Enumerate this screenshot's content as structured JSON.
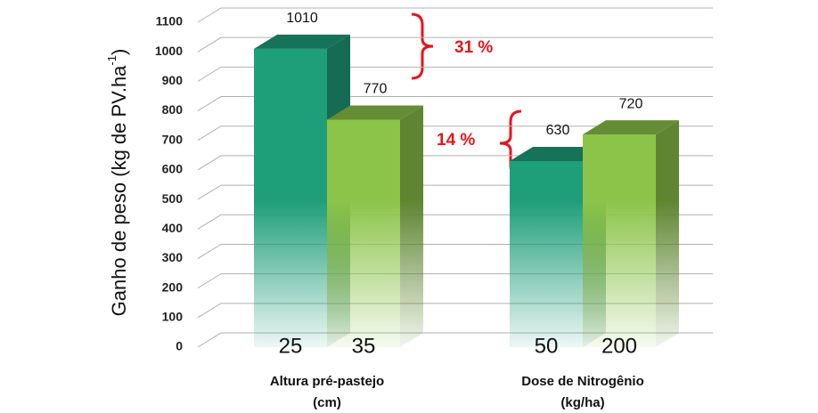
{
  "chart_data": {
    "type": "bar3d",
    "y_label": {
      "text": "Ganho de peso (kg de PV.ha",
      "superscript": "-1",
      "suffix": ")"
    },
    "groups": [
      {
        "label": [
          "Altura pré-pastejo",
          "(cm)"
        ],
        "categories": [
          "25",
          "35"
        ],
        "values": [
          1010,
          770
        ]
      },
      {
        "label": [
          "Dose de Nitrogênio",
          "(kg/ha)"
        ],
        "categories": [
          "50",
          "200"
        ],
        "values": [
          630,
          720
        ]
      }
    ],
    "colors": [
      "#1f9e7a",
      "#8cc44a"
    ],
    "ylim": [
      0,
      1100
    ],
    "yticks": [
      0,
      100,
      200,
      300,
      400,
      500,
      600,
      700,
      800,
      900,
      1000,
      1100
    ],
    "grid": true,
    "annotations": [
      "31 %",
      "14 %"
    ]
  }
}
